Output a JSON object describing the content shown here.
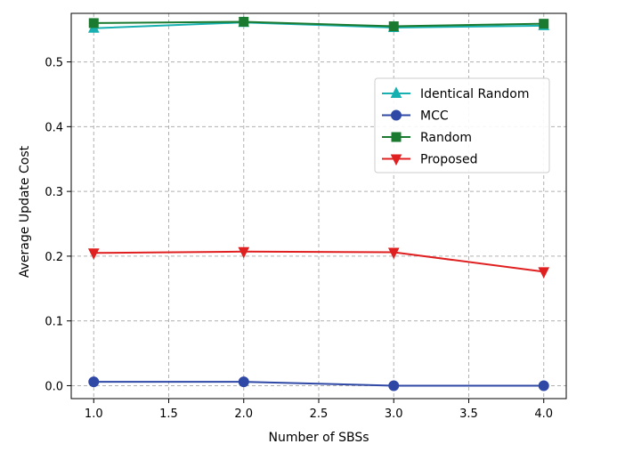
{
  "chart_data": {
    "type": "line",
    "xlabel": "Number of SBSs",
    "ylabel": "Average Update Cost",
    "xlim": [
      0.85,
      4.15
    ],
    "ylim": [
      -0.02,
      0.575
    ],
    "xticks": [
      "1.0",
      "1.5",
      "2.0",
      "2.5",
      "3.0",
      "3.5",
      "4.0"
    ],
    "yticks": [
      "0.0",
      "0.1",
      "0.2",
      "0.3",
      "0.4",
      "0.5"
    ],
    "grid": true,
    "legend_position": "upper-right",
    "series": [
      {
        "name": "Identical Random",
        "color": "#17b0b0",
        "marker": "triangle-up",
        "x": [
          1,
          2,
          3,
          4
        ],
        "values": [
          0.552,
          0.561,
          0.553,
          0.556
        ]
      },
      {
        "name": "MCC",
        "color": "#2f48a6",
        "marker": "circle",
        "x": [
          1,
          2,
          3,
          4
        ],
        "values": [
          0.006,
          0.006,
          0.0,
          0.0
        ]
      },
      {
        "name": "Random",
        "color": "#1a7a30",
        "marker": "square",
        "x": [
          1,
          2,
          3,
          4
        ],
        "values": [
          0.56,
          0.562,
          0.555,
          0.559
        ]
      },
      {
        "name": "Proposed",
        "color": "#e02020",
        "marker": "triangle-down",
        "x": [
          1,
          2,
          3,
          4
        ],
        "values": [
          0.205,
          0.207,
          0.206,
          0.176
        ]
      }
    ]
  }
}
